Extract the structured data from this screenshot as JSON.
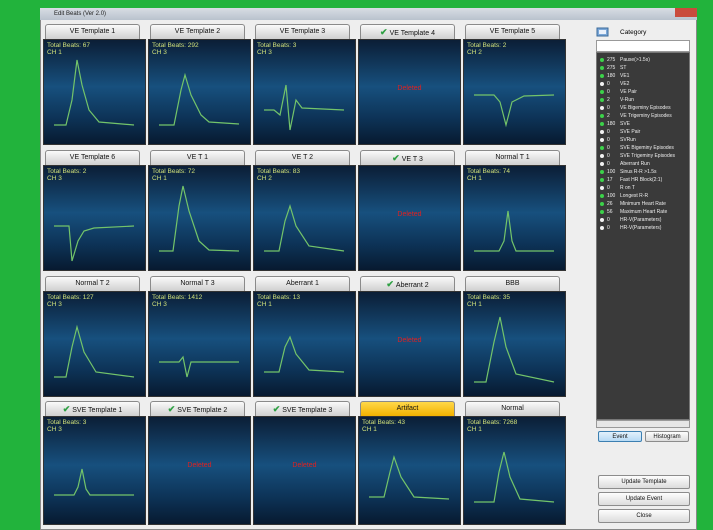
{
  "window": {
    "title": "Edit Beats (Ver 2.0)"
  },
  "templates": [
    {
      "label": "VE Template 1",
      "checked": false,
      "total_beats": "Total Beats: 67",
      "channel": "CH 1"
    },
    {
      "label": "VE Template 2",
      "checked": false,
      "total_beats": "Total Beats: 292",
      "channel": "CH 3"
    },
    {
      "label": "VE Template 3",
      "checked": false,
      "total_beats": "Total Beats: 3",
      "channel": "CH 3"
    },
    {
      "label": "VE Template 4",
      "checked": true,
      "status": "Deleted"
    },
    {
      "label": "VE Template 5",
      "checked": false,
      "total_beats": "Total Beats: 2",
      "channel": "CH 2"
    },
    {
      "label": "VE Template 6",
      "checked": false,
      "total_beats": "Total Beats: 2",
      "channel": "CH 3"
    },
    {
      "label": "VE T 1",
      "checked": false,
      "total_beats": "Total Beats: 72",
      "channel": "CH 1"
    },
    {
      "label": "VE T 2",
      "checked": false,
      "total_beats": "Total Beats: 83",
      "channel": "CH 2"
    },
    {
      "label": "VE T 3",
      "checked": true,
      "status": "Deleted"
    },
    {
      "label": "Normal T 1",
      "checked": false,
      "total_beats": "Total Beats: 74",
      "channel": "CH 1"
    },
    {
      "label": "Normal T 2",
      "checked": false,
      "total_beats": "Total Beats: 127",
      "channel": "CH 3"
    },
    {
      "label": "Normal T 3",
      "checked": false,
      "total_beats": "Total Beats: 1412",
      "channel": "CH 3"
    },
    {
      "label": "Aberrant 1",
      "checked": false,
      "total_beats": "Total Beats: 13",
      "channel": "CH 1"
    },
    {
      "label": "Aberrant 2",
      "checked": true,
      "status": "Deleted"
    },
    {
      "label": "BBB",
      "checked": false,
      "total_beats": "Total Beats: 35",
      "channel": "CH 1"
    },
    {
      "label": "SVE Template 1",
      "checked": true,
      "total_beats": "Total Beats: 3",
      "channel": "CH 3"
    },
    {
      "label": "SVE Template 2",
      "checked": true,
      "status": "Deleted"
    },
    {
      "label": "SVE Template 3",
      "checked": true,
      "status": "Deleted"
    },
    {
      "label": "Artifact",
      "checked": false,
      "selected": true,
      "total_beats": "Total Beats: 43",
      "channel": "CH 1"
    },
    {
      "label": "Normal",
      "checked": false,
      "total_beats": "Total Beats: 7268",
      "channel": "CH 1"
    }
  ],
  "category": {
    "title": "Category",
    "items": [
      {
        "count": "275",
        "label": "Pause(>1.5s)",
        "bullet": "green"
      },
      {
        "count": "275",
        "label": "ST",
        "bullet": "green"
      },
      {
        "count": "180",
        "label": "VE1",
        "bullet": "green"
      },
      {
        "count": "0",
        "label": "VE2",
        "bullet": "white"
      },
      {
        "count": "0",
        "label": "VE Pair",
        "bullet": "green"
      },
      {
        "count": "2",
        "label": "V-Run",
        "bullet": "green"
      },
      {
        "count": "0",
        "label": "VE Bigeminy Episodes",
        "bullet": "white"
      },
      {
        "count": "2",
        "label": "VE Trigeminy Episodes",
        "bullet": "green"
      },
      {
        "count": "180",
        "label": "SVE",
        "bullet": "green"
      },
      {
        "count": "0",
        "label": "SVE Pair",
        "bullet": "white"
      },
      {
        "count": "0",
        "label": "SVRun",
        "bullet": "white"
      },
      {
        "count": "0",
        "label": "SVE Bigeminy Episodes",
        "bullet": "green"
      },
      {
        "count": "0",
        "label": "SVE Trigeminy Episodes",
        "bullet": "white"
      },
      {
        "count": "0",
        "label": "Aberrant Run",
        "bullet": "white"
      },
      {
        "count": "100",
        "label": "Sinus R-R >1.5s",
        "bullet": "green"
      },
      {
        "count": "17",
        "label": "Fast HR Block(2:1)",
        "bullet": "green"
      },
      {
        "count": "0",
        "label": "R on T",
        "bullet": "white"
      },
      {
        "count": "100",
        "label": "Longest R-R",
        "bullet": "green"
      },
      {
        "count": "26",
        "label": "Minimum Heart Rate",
        "bullet": "green"
      },
      {
        "count": "56",
        "label": "Maximum Heart Rate",
        "bullet": "green"
      },
      {
        "count": "0",
        "label": "HR-V(Parameters)",
        "bullet": "white"
      },
      {
        "count": "0",
        "label": "HR-V(Parameters)",
        "bullet": "white"
      }
    ]
  },
  "view_buttons": [
    "Event",
    "Histogram"
  ],
  "action_buttons": [
    "Update Template",
    "Update Event",
    "Close"
  ]
}
